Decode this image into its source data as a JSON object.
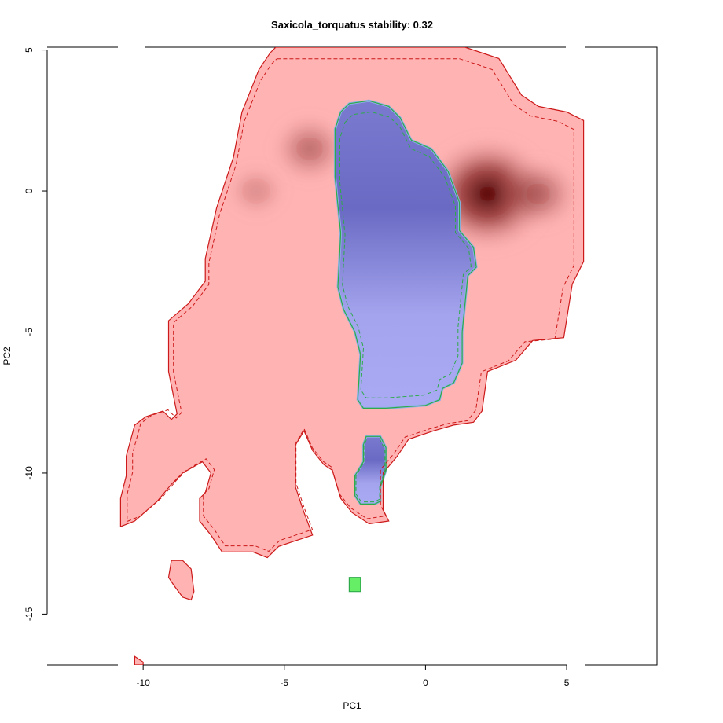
{
  "chart_data": {
    "type": "heatmap",
    "title": "Saxicola_torquatus stability: 0.32",
    "xlabel": "PC1",
    "ylabel": "PC2",
    "xlim": [
      -13.4,
      8.2
    ],
    "ylim": [
      -16.8,
      5.1
    ],
    "x_ticks": [
      -10,
      -5,
      0,
      5
    ],
    "y_ticks": [
      -15,
      -10,
      -5,
      0,
      5
    ],
    "grid": false,
    "legend": "none",
    "colors": {
      "native_niche": "#ffb3b3",
      "native_contour": "#cc1a1a",
      "invaded_niche": "#aaaaf2",
      "invaded_contour": "#2eaa4a",
      "overlap_only": "#66ee66",
      "density_high": "#4d0000"
    },
    "regions": [
      {
        "name": "native range",
        "fill": "native_niche",
        "outline": [
          [
            -5.3,
            5.1
          ],
          [
            -3.5,
            5.1
          ],
          [
            1.4,
            5.1
          ],
          [
            2.6,
            4.7
          ],
          [
            3.4,
            3.4
          ],
          [
            4.0,
            3.0
          ],
          [
            5.0,
            2.8
          ],
          [
            5.6,
            2.5
          ],
          [
            5.6,
            -2.5
          ],
          [
            5.2,
            -3.3
          ],
          [
            4.9,
            -5.2
          ],
          [
            3.8,
            -5.3
          ],
          [
            3.2,
            -6.0
          ],
          [
            2.2,
            -6.4
          ],
          [
            2.0,
            -7.8
          ],
          [
            1.7,
            -8.2
          ],
          [
            1.0,
            -8.3
          ],
          [
            0.3,
            -8.5
          ],
          [
            -0.6,
            -8.8
          ],
          [
            -1.0,
            -9.4
          ],
          [
            -1.5,
            -10.0
          ],
          [
            -1.5,
            -11.3
          ],
          [
            -1.3,
            -11.7
          ],
          [
            -2.0,
            -11.8
          ],
          [
            -2.6,
            -11.4
          ],
          [
            -3.0,
            -10.9
          ],
          [
            -3.3,
            -9.9
          ],
          [
            -3.6,
            -9.7
          ],
          [
            -4.0,
            -9.2
          ],
          [
            -4.3,
            -8.5
          ],
          [
            -4.6,
            -9.0
          ],
          [
            -4.6,
            -10.5
          ],
          [
            -4.3,
            -11.4
          ],
          [
            -4.0,
            -12.2
          ],
          [
            -4.6,
            -12.4
          ],
          [
            -5.2,
            -12.6
          ],
          [
            -5.6,
            -13.0
          ],
          [
            -6.1,
            -12.8
          ],
          [
            -7.2,
            -12.8
          ],
          [
            -7.6,
            -12.2
          ],
          [
            -8.0,
            -11.7
          ],
          [
            -8.0,
            -10.9
          ],
          [
            -7.8,
            -10.7
          ],
          [
            -7.6,
            -10.0
          ],
          [
            -7.9,
            -9.6
          ],
          [
            -8.6,
            -10.0
          ],
          [
            -9.0,
            -10.4
          ],
          [
            -9.5,
            -11.0
          ],
          [
            -10.3,
            -11.7
          ],
          [
            -10.8,
            -11.9
          ],
          [
            -10.8,
            -10.9
          ],
          [
            -10.6,
            -10.1
          ],
          [
            -10.6,
            -9.4
          ],
          [
            -10.3,
            -8.3
          ],
          [
            -9.9,
            -8.0
          ],
          [
            -9.3,
            -7.8
          ],
          [
            -9.0,
            -8.1
          ],
          [
            -8.8,
            -7.9
          ],
          [
            -9.1,
            -6.4
          ],
          [
            -9.1,
            -4.6
          ],
          [
            -8.4,
            -4.0
          ],
          [
            -7.8,
            -3.2
          ],
          [
            -7.8,
            -2.4
          ],
          [
            -7.4,
            -0.6
          ],
          [
            -6.8,
            1.2
          ],
          [
            -6.5,
            2.8
          ],
          [
            -6.1,
            3.8
          ],
          [
            -5.9,
            4.3
          ],
          [
            -5.5,
            4.9
          ]
        ]
      },
      {
        "name": "native range islet",
        "fill": "native_niche",
        "outline": [
          [
            -9.0,
            -13.1
          ],
          [
            -8.6,
            -13.1
          ],
          [
            -8.3,
            -13.4
          ],
          [
            -8.2,
            -14.2
          ],
          [
            -8.3,
            -14.5
          ],
          [
            -8.6,
            -14.4
          ],
          [
            -8.9,
            -14.0
          ],
          [
            -9.1,
            -13.7
          ]
        ]
      },
      {
        "name": "native range corner",
        "fill": "native_niche",
        "outline": [
          [
            -10.3,
            -16.8
          ],
          [
            -10.3,
            -16.5
          ],
          [
            -10.0,
            -16.7
          ],
          [
            -10.0,
            -16.8
          ]
        ]
      },
      {
        "name": "invaded range",
        "fill": "invaded_niche",
        "outline": [
          [
            -3.0,
            2.8
          ],
          [
            -2.7,
            3.1
          ],
          [
            -2.0,
            3.2
          ],
          [
            -1.3,
            3.0
          ],
          [
            -0.9,
            2.6
          ],
          [
            -0.5,
            1.8
          ],
          [
            0.2,
            1.5
          ],
          [
            0.8,
            0.7
          ],
          [
            1.2,
            -0.4
          ],
          [
            1.2,
            -1.4
          ],
          [
            1.7,
            -2.0
          ],
          [
            1.8,
            -2.7
          ],
          [
            1.5,
            -3.0
          ],
          [
            1.3,
            -5.0
          ],
          [
            1.3,
            -6.1
          ],
          [
            1.0,
            -6.8
          ],
          [
            0.6,
            -7.0
          ],
          [
            0.5,
            -7.4
          ],
          [
            0.0,
            -7.6
          ],
          [
            -1.4,
            -7.7
          ],
          [
            -2.2,
            -7.7
          ],
          [
            -2.4,
            -7.4
          ],
          [
            -2.3,
            -5.8
          ],
          [
            -2.5,
            -5.0
          ],
          [
            -2.9,
            -4.2
          ],
          [
            -3.1,
            -3.4
          ],
          [
            -3.0,
            -1.5
          ],
          [
            -3.2,
            0.5
          ],
          [
            -3.2,
            2.2
          ]
        ]
      },
      {
        "name": "invaded range lower",
        "fill": "invaded_niche",
        "outline": [
          [
            -2.1,
            -8.7
          ],
          [
            -1.6,
            -8.7
          ],
          [
            -1.4,
            -9.1
          ],
          [
            -1.4,
            -9.9
          ],
          [
            -1.6,
            -10.5
          ],
          [
            -1.6,
            -11.0
          ],
          [
            -1.8,
            -11.1
          ],
          [
            -2.3,
            -11.1
          ],
          [
            -2.5,
            -10.8
          ],
          [
            -2.5,
            -10.1
          ],
          [
            -2.2,
            -9.6
          ],
          [
            -2.2,
            -9.0
          ]
        ]
      },
      {
        "name": "invaded only islet",
        "fill": "overlap_only",
        "outline": [
          [
            -2.7,
            -13.7
          ],
          [
            -2.3,
            -13.7
          ],
          [
            -2.3,
            -14.2
          ],
          [
            -2.7,
            -14.2
          ]
        ]
      }
    ],
    "density_peaks": [
      {
        "x": 2.2,
        "y": -0.1,
        "intensity": 1.0
      },
      {
        "x": 4.0,
        "y": -0.1,
        "intensity": 0.45
      },
      {
        "x": -4.1,
        "y": 1.5,
        "intensity": 0.4
      },
      {
        "x": -6.0,
        "y": 0.0,
        "intensity": 0.22
      },
      {
        "x": -0.6,
        "y": -0.4,
        "intensity": 0.35
      }
    ]
  }
}
